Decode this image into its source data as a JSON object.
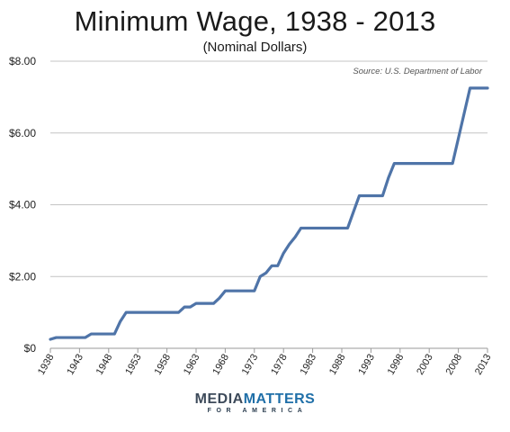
{
  "chart_data": {
    "type": "line",
    "title": "Minimum Wage, 1938 - 2013",
    "subtitle": "(Nominal Dollars)",
    "source": "Source: U.S. Department of Labor",
    "xlim": [
      1938,
      2013
    ],
    "ylim": [
      0,
      8
    ],
    "y_ticks": [
      0,
      2,
      4,
      6,
      8
    ],
    "y_tick_labels": [
      "$0",
      "$2.00",
      "$4.00",
      "$6.00",
      "$8.00"
    ],
    "x_ticks": [
      1938,
      1943,
      1948,
      1953,
      1958,
      1963,
      1968,
      1973,
      1978,
      1983,
      1988,
      1993,
      1998,
      2003,
      2008,
      2013
    ],
    "x_tick_labels": [
      "1938",
      "1943",
      "1948",
      "1953",
      "1958",
      "1963",
      "1968",
      "1973",
      "1978",
      "1983",
      "1988",
      "1993",
      "1998",
      "2003",
      "2008",
      "2013"
    ],
    "grid": "horizontal",
    "line_color": "#4f74a8",
    "series": [
      {
        "x": [
          1938,
          1939,
          1940,
          1941,
          1942,
          1943,
          1944,
          1945,
          1946,
          1947,
          1948,
          1949,
          1950,
          1951,
          1952,
          1953,
          1954,
          1955,
          1956,
          1957,
          1958,
          1959,
          1960,
          1961,
          1962,
          1963,
          1964,
          1965,
          1966,
          1967,
          1968,
          1969,
          1970,
          1971,
          1972,
          1973,
          1974,
          1975,
          1976,
          1977,
          1978,
          1979,
          1980,
          1981,
          1982,
          1983,
          1984,
          1985,
          1986,
          1987,
          1988,
          1989,
          1990,
          1991,
          1992,
          1993,
          1994,
          1995,
          1996,
          1997,
          1998,
          1999,
          2000,
          2001,
          2002,
          2003,
          2004,
          2005,
          2006,
          2007,
          2008,
          2009,
          2010,
          2011,
          2012,
          2013
        ],
        "values": [
          0.25,
          0.3,
          0.3,
          0.3,
          0.3,
          0.3,
          0.3,
          0.4,
          0.4,
          0.4,
          0.4,
          0.4,
          0.75,
          1.0,
          1.0,
          1.0,
          1.0,
          1.0,
          1.0,
          1.0,
          1.0,
          1.0,
          1.0,
          1.15,
          1.15,
          1.25,
          1.25,
          1.25,
          1.25,
          1.4,
          1.6,
          1.6,
          1.6,
          1.6,
          1.6,
          1.6,
          2.0,
          2.1,
          2.3,
          2.3,
          2.65,
          2.9,
          3.1,
          3.35,
          3.35,
          3.35,
          3.35,
          3.35,
          3.35,
          3.35,
          3.35,
          3.35,
          3.8,
          4.25,
          4.25,
          4.25,
          4.25,
          4.25,
          4.75,
          5.15,
          5.15,
          5.15,
          5.15,
          5.15,
          5.15,
          5.15,
          5.15,
          5.15,
          5.15,
          5.15,
          5.85,
          6.55,
          7.25,
          7.25,
          7.25,
          7.25
        ]
      }
    ]
  },
  "logo": {
    "media": "MEDIA",
    "matters": "MATTERS",
    "sub": "FOR AMERICA"
  }
}
